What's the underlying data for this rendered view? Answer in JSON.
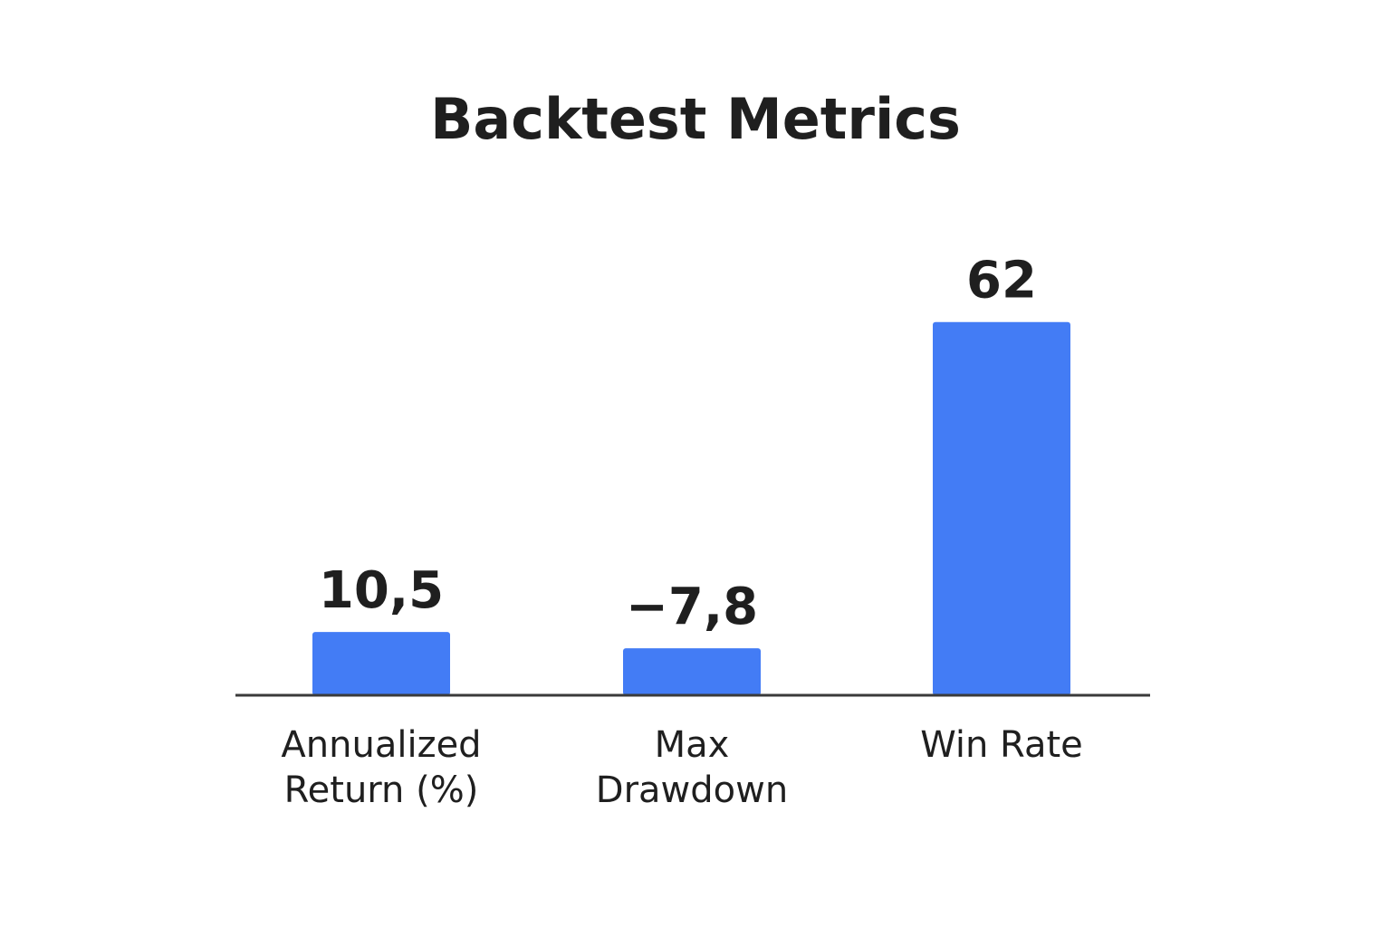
{
  "chart_data": {
    "type": "bar",
    "title": "Backtest Metrics",
    "categories": [
      "Annualized Return (%)",
      "Max Drawdown",
      "Win Rate"
    ],
    "category_lines": [
      [
        "Annualized",
        "Return (%)"
      ],
      [
        "Max",
        "Drawdown"
      ],
      [
        "Win Rate"
      ]
    ],
    "values": [
      10.5,
      -7.8,
      62
    ],
    "value_labels": [
      "10,5",
      "−7,8",
      "62"
    ],
    "bar_color": "#437cf5",
    "axis_color": "#3a3a3a",
    "text_color": "#1f1f1f",
    "grid": false,
    "legend": "none"
  }
}
